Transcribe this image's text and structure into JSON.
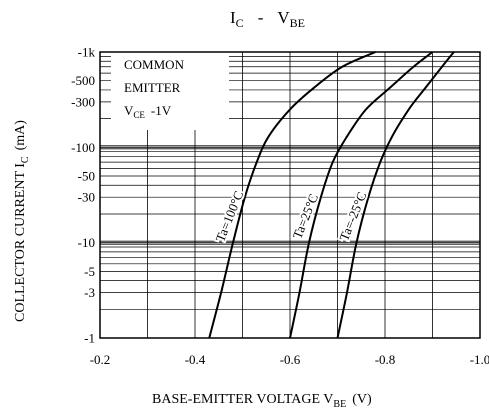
{
  "chart_data": {
    "type": "line",
    "title": "I",
    "title_sub": "C",
    "title_sep": "-",
    "title_part2": "V",
    "title_part2_sub": "BE",
    "xlabel": "BASE-EMITTER VOLTAGE V",
    "xlabel_sub": "BE",
    "xlabel_unit": "(V)",
    "ylabel": "COLLECTOR CURRENT I",
    "ylabel_sub": "C",
    "ylabel_unit": "(mA)",
    "y_scale": "log",
    "xlim": [
      -0.2,
      -1.0
    ],
    "ylim": [
      -1,
      -1000
    ],
    "grid": true,
    "x_ticks": [
      {
        "value": -0.2,
        "label": "-0.2"
      },
      {
        "value": -0.4,
        "label": "-0.4"
      },
      {
        "value": -0.6,
        "label": "-0.6"
      },
      {
        "value": -0.8,
        "label": "-0.8"
      },
      {
        "value": -1.0,
        "label": "-1.0"
      }
    ],
    "y_ticks": [
      {
        "value": -1,
        "label": "-1"
      },
      {
        "value": -3,
        "label": "-3"
      },
      {
        "value": -5,
        "label": "-5"
      },
      {
        "value": -10,
        "label": "-10"
      },
      {
        "value": -30,
        "label": "-30"
      },
      {
        "value": -50,
        "label": "-50"
      },
      {
        "value": -100,
        "label": "-100"
      },
      {
        "value": -300,
        "label": "-300"
      },
      {
        "value": -500,
        "label": "-500"
      },
      {
        "value": -1000,
        "label": "-1k"
      }
    ],
    "legend_box": {
      "line1": "COMMON",
      "line2": "EMITTER",
      "line3_main": "V",
      "line3_sub": "CE",
      "line3_value": "-1V"
    },
    "series": [
      {
        "name": "Ta=100°C",
        "x": [
          -0.43,
          -0.455,
          -0.48,
          -0.505,
          -0.53,
          -0.555,
          -0.6,
          -0.65,
          -0.71,
          -0.78
        ],
        "y": [
          -1,
          -3,
          -10,
          -30,
          -70,
          -130,
          -250,
          -420,
          -700,
          -1000
        ]
      },
      {
        "name": "Ta=25°C",
        "x": [
          -0.6,
          -0.62,
          -0.64,
          -0.665,
          -0.69,
          -0.72,
          -0.76,
          -0.81,
          -0.86,
          -0.9
        ],
        "y": [
          -1,
          -3,
          -10,
          -30,
          -70,
          -130,
          -250,
          -420,
          -700,
          -1000
        ]
      },
      {
        "name": "Ta=-25°C",
        "x": [
          -0.7,
          -0.72,
          -0.74,
          -0.765,
          -0.79,
          -0.815,
          -0.85,
          -0.885,
          -0.92,
          -0.945
        ],
        "y": [
          -1,
          -3,
          -10,
          -30,
          -70,
          -130,
          -250,
          -420,
          -700,
          -1000
        ]
      }
    ]
  }
}
